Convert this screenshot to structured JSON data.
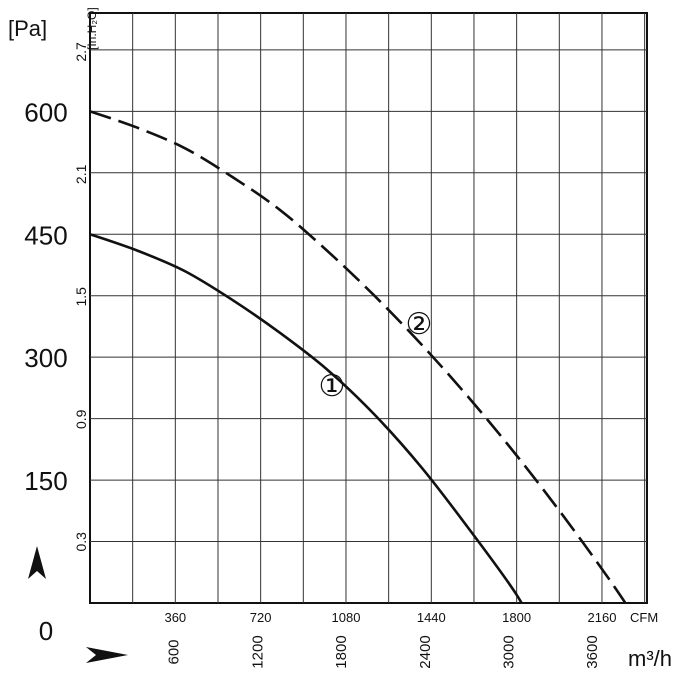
{
  "chart_data": {
    "type": "line",
    "title": "",
    "left_axis": {
      "unit": "[Pa]",
      "ticks": [
        "0",
        "150",
        "300",
        "450",
        "600"
      ],
      "ylim": [
        0,
        720
      ]
    },
    "right_axis": {
      "unit": "[In.H₂O]",
      "ticks": [
        "0.3",
        "0.9",
        "1.5",
        "2.1",
        "2.7"
      ]
    },
    "x_axis_cfm": {
      "unit": "CFM",
      "ticks": [
        "360",
        "720",
        "1080",
        "1440",
        "1800",
        "2160"
      ],
      "xlim": [
        0,
        2350
      ]
    },
    "x_axis_m3h": {
      "unit": "m³/h",
      "ticks": [
        "600",
        "1200",
        "1800",
        "2400",
        "3000",
        "3600"
      ]
    },
    "series": [
      {
        "name": "①",
        "style": "solid",
        "x_cfm": [
          0,
          200,
          400,
          600,
          800,
          1000,
          1200,
          1400,
          1600,
          1800,
          1900,
          1980
        ],
        "y_pa": [
          450,
          430,
          405,
          370,
          330,
          285,
          230,
          165,
          90,
          10,
          -45,
          -90
        ]
      },
      {
        "name": "②",
        "style": "dashed",
        "x_cfm": [
          0,
          200,
          400,
          600,
          800,
          1000,
          1200,
          1400,
          1600,
          1800,
          2000,
          2200,
          2350
        ],
        "y_pa": [
          600,
          580,
          555,
          520,
          480,
          430,
          375,
          315,
          250,
          180,
          105,
          25,
          -40
        ]
      }
    ],
    "labels": [
      {
        "text": "①",
        "series": 0
      },
      {
        "text": "②",
        "series": 1
      }
    ]
  }
}
